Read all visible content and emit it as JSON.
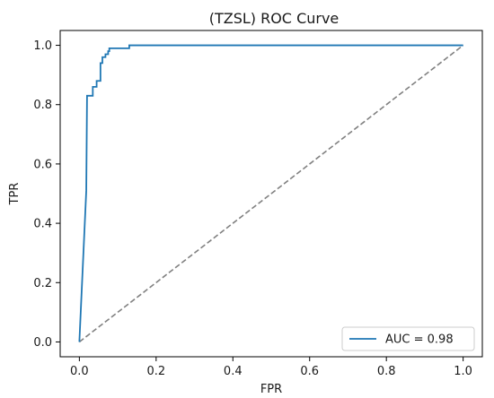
{
  "chart_data": {
    "type": "line",
    "title": "(TZSL) ROC Curve",
    "xlabel": "FPR",
    "ylabel": "TPR",
    "xlim": [
      -0.05,
      1.05
    ],
    "ylim": [
      -0.05,
      1.05
    ],
    "x_ticks": [
      "0.0",
      "0.2",
      "0.4",
      "0.6",
      "0.8",
      "1.0"
    ],
    "x_tick_values": [
      0.0,
      0.2,
      0.4,
      0.6,
      0.8,
      1.0
    ],
    "y_ticks": [
      "0.0",
      "0.2",
      "0.4",
      "0.6",
      "0.8",
      "1.0"
    ],
    "y_tick_values": [
      0.0,
      0.2,
      0.4,
      0.6,
      0.8,
      1.0
    ],
    "grid": false,
    "legend_position": "lower-right",
    "series": [
      {
        "name": "AUC = 0.98",
        "color": "#1f77b4",
        "style": "solid",
        "points": [
          [
            0.0,
            0.0
          ],
          [
            0.018,
            0.51
          ],
          [
            0.02,
            0.83
          ],
          [
            0.035,
            0.83
          ],
          [
            0.035,
            0.86
          ],
          [
            0.045,
            0.86
          ],
          [
            0.045,
            0.88
          ],
          [
            0.055,
            0.88
          ],
          [
            0.055,
            0.94
          ],
          [
            0.06,
            0.94
          ],
          [
            0.06,
            0.96
          ],
          [
            0.068,
            0.96
          ],
          [
            0.068,
            0.97
          ],
          [
            0.075,
            0.97
          ],
          [
            0.075,
            0.98
          ],
          [
            0.078,
            0.98
          ],
          [
            0.078,
            0.99
          ],
          [
            0.13,
            0.99
          ],
          [
            0.13,
            1.0
          ],
          [
            1.0,
            1.0
          ]
        ]
      },
      {
        "name": "",
        "color": "#808080",
        "style": "dashed",
        "points": [
          [
            0.0,
            0.0
          ],
          [
            1.0,
            1.0
          ]
        ]
      }
    ]
  }
}
